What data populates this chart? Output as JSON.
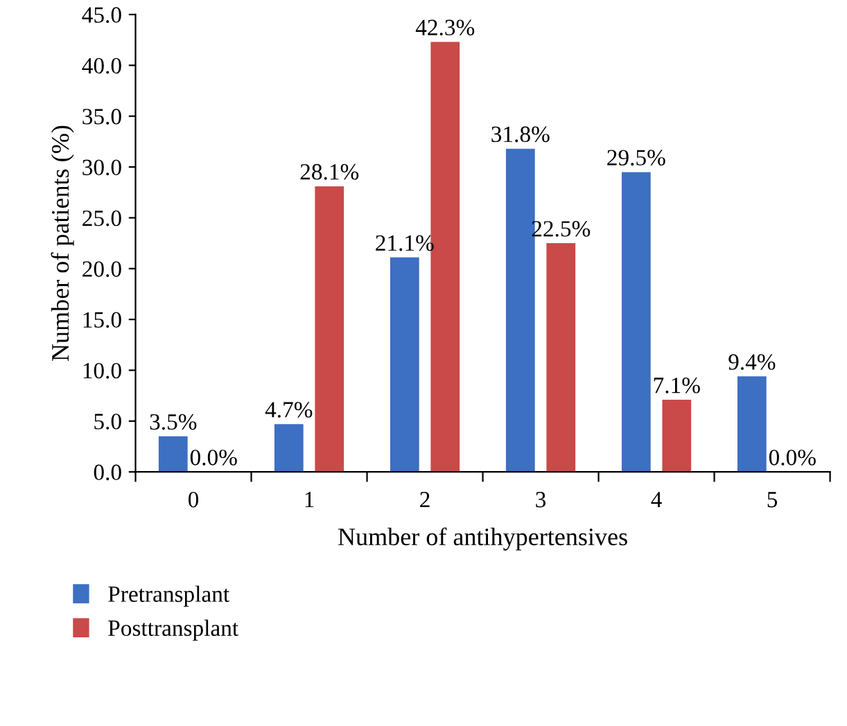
{
  "chart_data": {
    "type": "bar",
    "xlabel": "Number of antihypertensives",
    "ylabel": "Number of patients (%)",
    "categories": [
      "0",
      "1",
      "2",
      "3",
      "4",
      "5"
    ],
    "series": [
      {
        "name": "Pretransplant",
        "color": "#3d6fc2",
        "values": [
          3.5,
          4.7,
          21.1,
          31.8,
          29.5,
          9.4
        ],
        "value_labels": [
          "3.5%",
          "4.7%",
          "21.1%",
          "31.8%",
          "29.5%",
          "9.4%"
        ]
      },
      {
        "name": "Posttransplant",
        "color": "#c94a48",
        "values": [
          0.0,
          28.1,
          42.3,
          22.5,
          7.1,
          0.0
        ],
        "value_labels": [
          "0.0%",
          "28.1%",
          "42.3%",
          "22.5%",
          "7.1%",
          "0.0%"
        ]
      }
    ],
    "ylim": [
      0,
      45
    ],
    "yticks": [
      {
        "value": 0,
        "label": "0.0"
      },
      {
        "value": 5,
        "label": "5.0"
      },
      {
        "value": 10,
        "label": "10.0"
      },
      {
        "value": 15,
        "label": "15.0"
      },
      {
        "value": 20,
        "label": "20.0"
      },
      {
        "value": 25,
        "label": "25.0"
      },
      {
        "value": 30,
        "label": "30.0"
      },
      {
        "value": 35,
        "label": "35.0"
      },
      {
        "value": 40,
        "label": "40.0"
      },
      {
        "value": 45,
        "label": "45.0"
      }
    ],
    "grid": false,
    "legend": "bottom left"
  }
}
